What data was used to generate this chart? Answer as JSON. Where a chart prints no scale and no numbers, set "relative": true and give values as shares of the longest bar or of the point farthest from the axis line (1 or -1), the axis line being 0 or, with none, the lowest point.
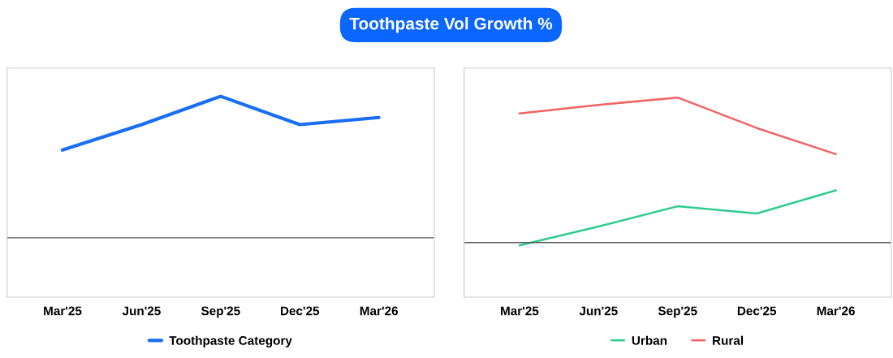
{
  "chart_data": [
    {
      "type": "line",
      "title": "Toothpaste Vol Growth %",
      "relative": true,
      "categories": [
        "Mar'25",
        "Jun'25",
        "Sep'25",
        "Dec'25",
        "Mar'26"
      ],
      "legend": "bottom",
      "series": [
        {
          "name": "Toothpaste Category",
          "color": "#1a6ef5",
          "values": [
            0.62,
            0.8,
            1,
            0.8,
            0.85
          ]
        }
      ]
    },
    {
      "type": "line",
      "relative": true,
      "categories": [
        "Mar'25",
        "Jun'25",
        "Sep'25",
        "Dec'25",
        "Mar'26"
      ],
      "legend": "bottom",
      "series": [
        {
          "name": "Urban",
          "color": "#2ecc8f",
          "values": [
            -0.02,
            0.11,
            0.25,
            0.2,
            0.36
          ]
        },
        {
          "name": "Rural",
          "color": "#f06463",
          "values": [
            0.89,
            0.95,
            1,
            0.79,
            0.61
          ]
        }
      ]
    }
  ]
}
